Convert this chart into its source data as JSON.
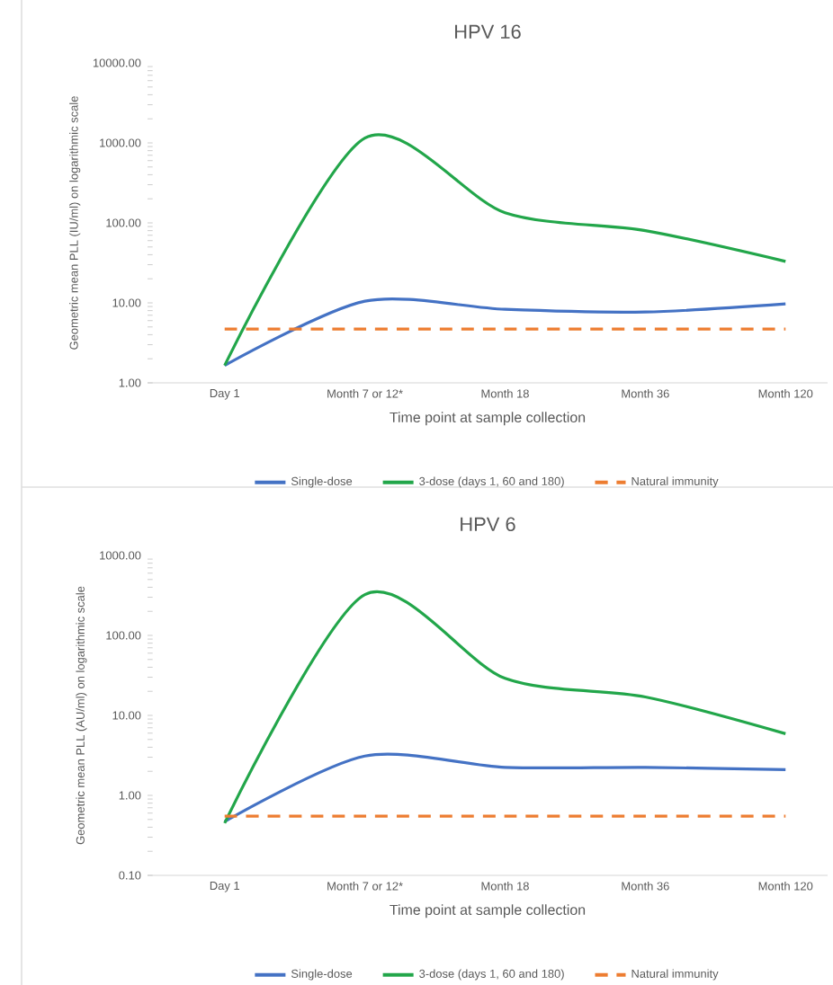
{
  "chart_data": [
    {
      "type": "line",
      "title": "HPV 16",
      "xlabel": "Time point at sample collection",
      "ylabel": "Geometric mean PLL (IU/ml) on logarithmic scale",
      "categories": [
        "Day 1",
        "Month 7 or 12*",
        "Month 18",
        "Month 36",
        "Month 120"
      ],
      "log": "y",
      "ylim": [
        1,
        10000
      ],
      "yticks": [
        {
          "value": 1,
          "label": "1.00"
        },
        {
          "value": 10,
          "label": "10.00"
        },
        {
          "value": 100,
          "label": "100.00"
        },
        {
          "value": 1000,
          "label": "1000.00"
        },
        {
          "value": 10000,
          "label": "10000.00"
        }
      ],
      "legend": "bottom",
      "series": [
        {
          "name": "Single-dose",
          "color": "#4472c4",
          "values": [
            1.65,
            10.5,
            8.3,
            7.7,
            9.7
          ]
        },
        {
          "name": "3-dose (days 1, 60 and 180)",
          "color": "#22a64a",
          "values": [
            1.65,
            1150,
            134,
            80,
            33
          ]
        },
        {
          "name": "Natural immunity",
          "color": "#ed7d31",
          "line_style": "dashed",
          "values": [
            4.7,
            4.7,
            4.7,
            4.7,
            4.7
          ]
        }
      ]
    },
    {
      "type": "line",
      "title": "HPV 6",
      "xlabel": "Time point at sample collection",
      "ylabel": "Geometric mean PLL (AU/ml) on logarithmic scale",
      "categories": [
        "Day 1",
        "Month 7 or 12*",
        "Month 18",
        "Month 36",
        "Month 120"
      ],
      "log": "y",
      "ylim": [
        0.1,
        1000
      ],
      "yticks": [
        {
          "value": 0.1,
          "label": "0.10"
        },
        {
          "value": 1,
          "label": "1.00"
        },
        {
          "value": 10,
          "label": "10.00"
        },
        {
          "value": 100,
          "label": "100.00"
        },
        {
          "value": 1000,
          "label": "1000.00"
        }
      ],
      "legend": "bottom",
      "series": [
        {
          "name": "Single-dose",
          "color": "#4472c4",
          "values": [
            0.47,
            3.1,
            2.24,
            2.24,
            2.1
          ]
        },
        {
          "name": "3-dose (days 1, 60 and 180)",
          "color": "#22a64a",
          "values": [
            0.45,
            324,
            29,
            17,
            5.9
          ]
        },
        {
          "name": "Natural immunity",
          "color": "#ed7d31",
          "line_style": "dashed",
          "values": [
            0.55,
            0.55,
            0.55,
            0.55,
            0.55
          ]
        }
      ]
    }
  ]
}
